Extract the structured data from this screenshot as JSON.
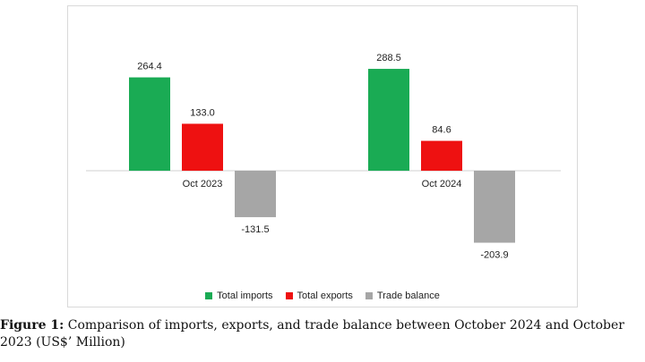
{
  "chart_data": {
    "type": "bar",
    "categories": [
      "Oct 2023",
      "Oct 2024"
    ],
    "series": [
      {
        "name": "Total imports",
        "color": "#1aab54",
        "values": [
          264.4,
          288.5
        ]
      },
      {
        "name": "Total exports",
        "color": "#ee1111",
        "values": [
          133.0,
          84.6
        ]
      },
      {
        "name": "Trade balance",
        "color": "#a6a6a6",
        "values": [
          -131.5,
          -203.9
        ]
      }
    ],
    "data_labels": [
      [
        "264.4",
        "288.5"
      ],
      [
        "133.0",
        "84.6"
      ],
      [
        "-131.5",
        "-203.9"
      ]
    ],
    "title": "",
    "xlabel": "",
    "ylabel": "",
    "ylim": [
      -300,
      300
    ],
    "grid": false,
    "legend_position": "bottom"
  },
  "caption": {
    "lead": "Figure 1:",
    "text": "Comparison of imports, exports, and trade balance between October 2024 and October 2023 (US$’ Million)"
  }
}
